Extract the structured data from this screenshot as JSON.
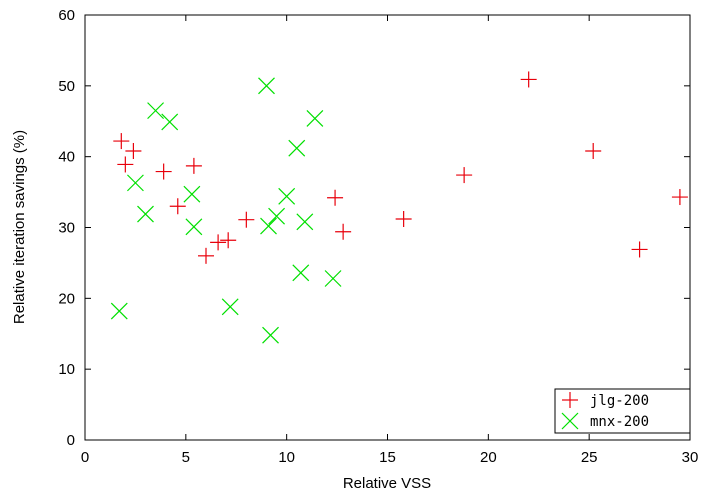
{
  "chart_data": {
    "type": "scatter",
    "title": "",
    "xlabel": "Relative VSS",
    "ylabel": "Relative iteration savings (%)",
    "xlim": [
      0,
      30
    ],
    "ylim": [
      0,
      60
    ],
    "xticks": [
      0,
      5,
      10,
      15,
      20,
      25,
      30
    ],
    "yticks": [
      0,
      10,
      20,
      30,
      40,
      50,
      60
    ],
    "xtick_labels": [
      "0",
      "5",
      "10",
      "15",
      "20",
      "25",
      "30"
    ],
    "ytick_labels": [
      "0",
      "10",
      "20",
      "30",
      "40",
      "50",
      "60"
    ],
    "grid": false,
    "legend_position": "bottom-right",
    "series": [
      {
        "name": "jlg-200",
        "marker": "plus",
        "color": "#e8000b",
        "points": [
          [
            1.8,
            42.2
          ],
          [
            2.0,
            38.9
          ],
          [
            2.4,
            40.8
          ],
          [
            3.9,
            37.9
          ],
          [
            4.6,
            33.0
          ],
          [
            5.4,
            38.7
          ],
          [
            6.0,
            26.0
          ],
          [
            6.6,
            27.9
          ],
          [
            7.1,
            28.2
          ],
          [
            8.0,
            31.1
          ],
          [
            12.4,
            34.2
          ],
          [
            12.8,
            29.4
          ],
          [
            15.8,
            31.2
          ],
          [
            18.8,
            37.4
          ],
          [
            22.0,
            50.9
          ],
          [
            25.2,
            40.8
          ],
          [
            27.5,
            26.9
          ],
          [
            29.5,
            34.3
          ]
        ]
      },
      {
        "name": "mnx-200",
        "marker": "x",
        "color": "#00e000",
        "points": [
          [
            1.7,
            18.2
          ],
          [
            2.5,
            36.3
          ],
          [
            3.0,
            31.9
          ],
          [
            3.5,
            46.5
          ],
          [
            4.2,
            44.9
          ],
          [
            5.3,
            34.7
          ],
          [
            5.4,
            30.1
          ],
          [
            7.2,
            18.8
          ],
          [
            9.0,
            50.0
          ],
          [
            9.1,
            30.2
          ],
          [
            9.2,
            14.8
          ],
          [
            9.5,
            31.6
          ],
          [
            10.0,
            34.4
          ],
          [
            10.5,
            41.2
          ],
          [
            10.7,
            23.6
          ],
          [
            10.9,
            30.8
          ],
          [
            11.4,
            45.4
          ],
          [
            12.3,
            22.8
          ]
        ]
      }
    ]
  }
}
